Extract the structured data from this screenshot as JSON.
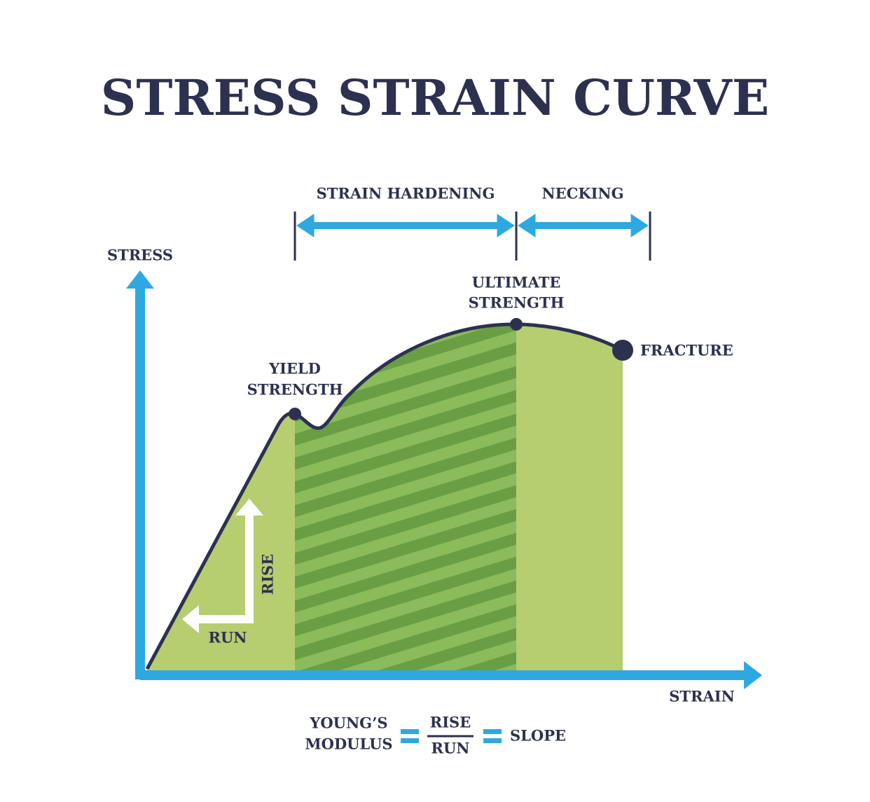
{
  "title": "STRESS STRAIN CURVE",
  "axes": {
    "y": "STRESS",
    "x": "STRAIN"
  },
  "regions": [
    {
      "label": "STRAIN HARDENING"
    },
    {
      "label": "NECKING"
    }
  ],
  "points": [
    {
      "label": [
        "YIELD",
        "STRENGTH"
      ]
    },
    {
      "label": [
        "ULTIMATE",
        "STRENGTH"
      ]
    },
    {
      "label": [
        "FRACTURE"
      ]
    }
  ],
  "slope_arrows": {
    "rise": "RISE",
    "run": "RUN"
  },
  "formula": {
    "name": [
      "YOUNG’S",
      "MODULUS"
    ],
    "numerator": "RISE",
    "denominator": "RUN",
    "result": "SLOPE"
  }
}
